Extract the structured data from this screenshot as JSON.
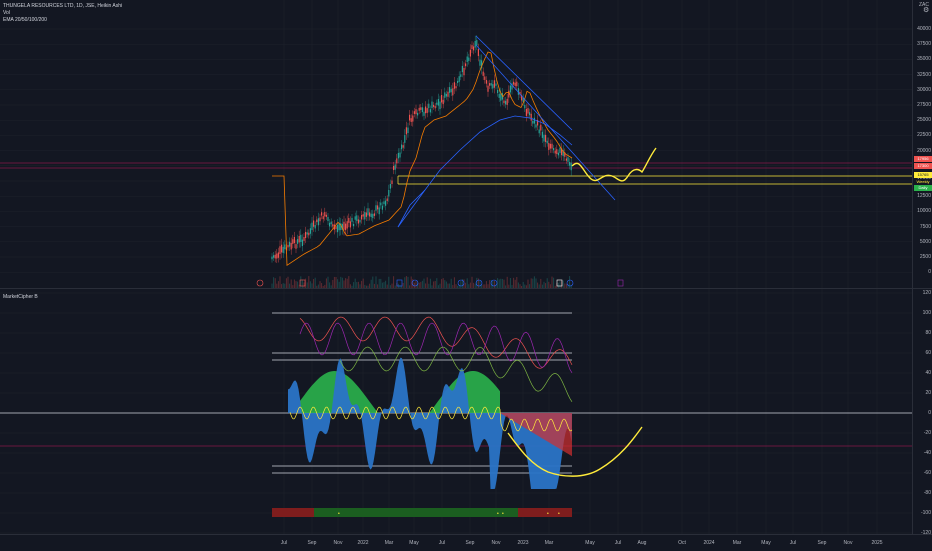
{
  "main": {
    "title": "THUNGELA RESOURCES LTD, 1D, JSE, Heikin Ashi",
    "vol_label": "Vol",
    "ema_label": "EMA 20/50/100/200",
    "currency": "ZAC"
  },
  "osc": {
    "title": "MarketCipher B"
  },
  "yaxis_main": [
    "40000",
    "37500",
    "35000",
    "32500",
    "30000",
    "27500",
    "25000",
    "22500",
    "20000",
    "17500",
    "15000",
    "12500",
    "10000",
    "7500",
    "5000",
    "2500",
    "0"
  ],
  "yaxis_osc": [
    "120",
    "100",
    "80",
    "60",
    "40",
    "20",
    "0",
    "-20",
    "-40",
    "-60",
    "-80",
    "-100",
    "-120"
  ],
  "price_tags": [
    "17956",
    "17300",
    "15765",
    "Weekly",
    "Daily"
  ],
  "xaxis": [
    "Jul",
    "Sep",
    "Nov",
    "2022",
    "Mar",
    "May",
    "Jul",
    "Sep",
    "Nov",
    "2023",
    "Mar",
    "May",
    "Jul",
    "Aug",
    "Oct",
    "2024",
    "Mar",
    "May",
    "Jul",
    "Sep",
    "Nov",
    "2025",
    "Mar"
  ],
  "colors": {
    "background": "#131722",
    "grid": "#1e222d",
    "candle_up": "#26a69a",
    "candle_down": "#ef5350",
    "ema_orange": "#f57c00",
    "ema_blue": "#2962ff",
    "drawing_yellow": "#ffeb3b",
    "osc_blue": "#2a74c7",
    "osc_green": "#2bb24c",
    "osc_red": "#d32f2f",
    "osc_purple": "#9c27b0"
  }
}
